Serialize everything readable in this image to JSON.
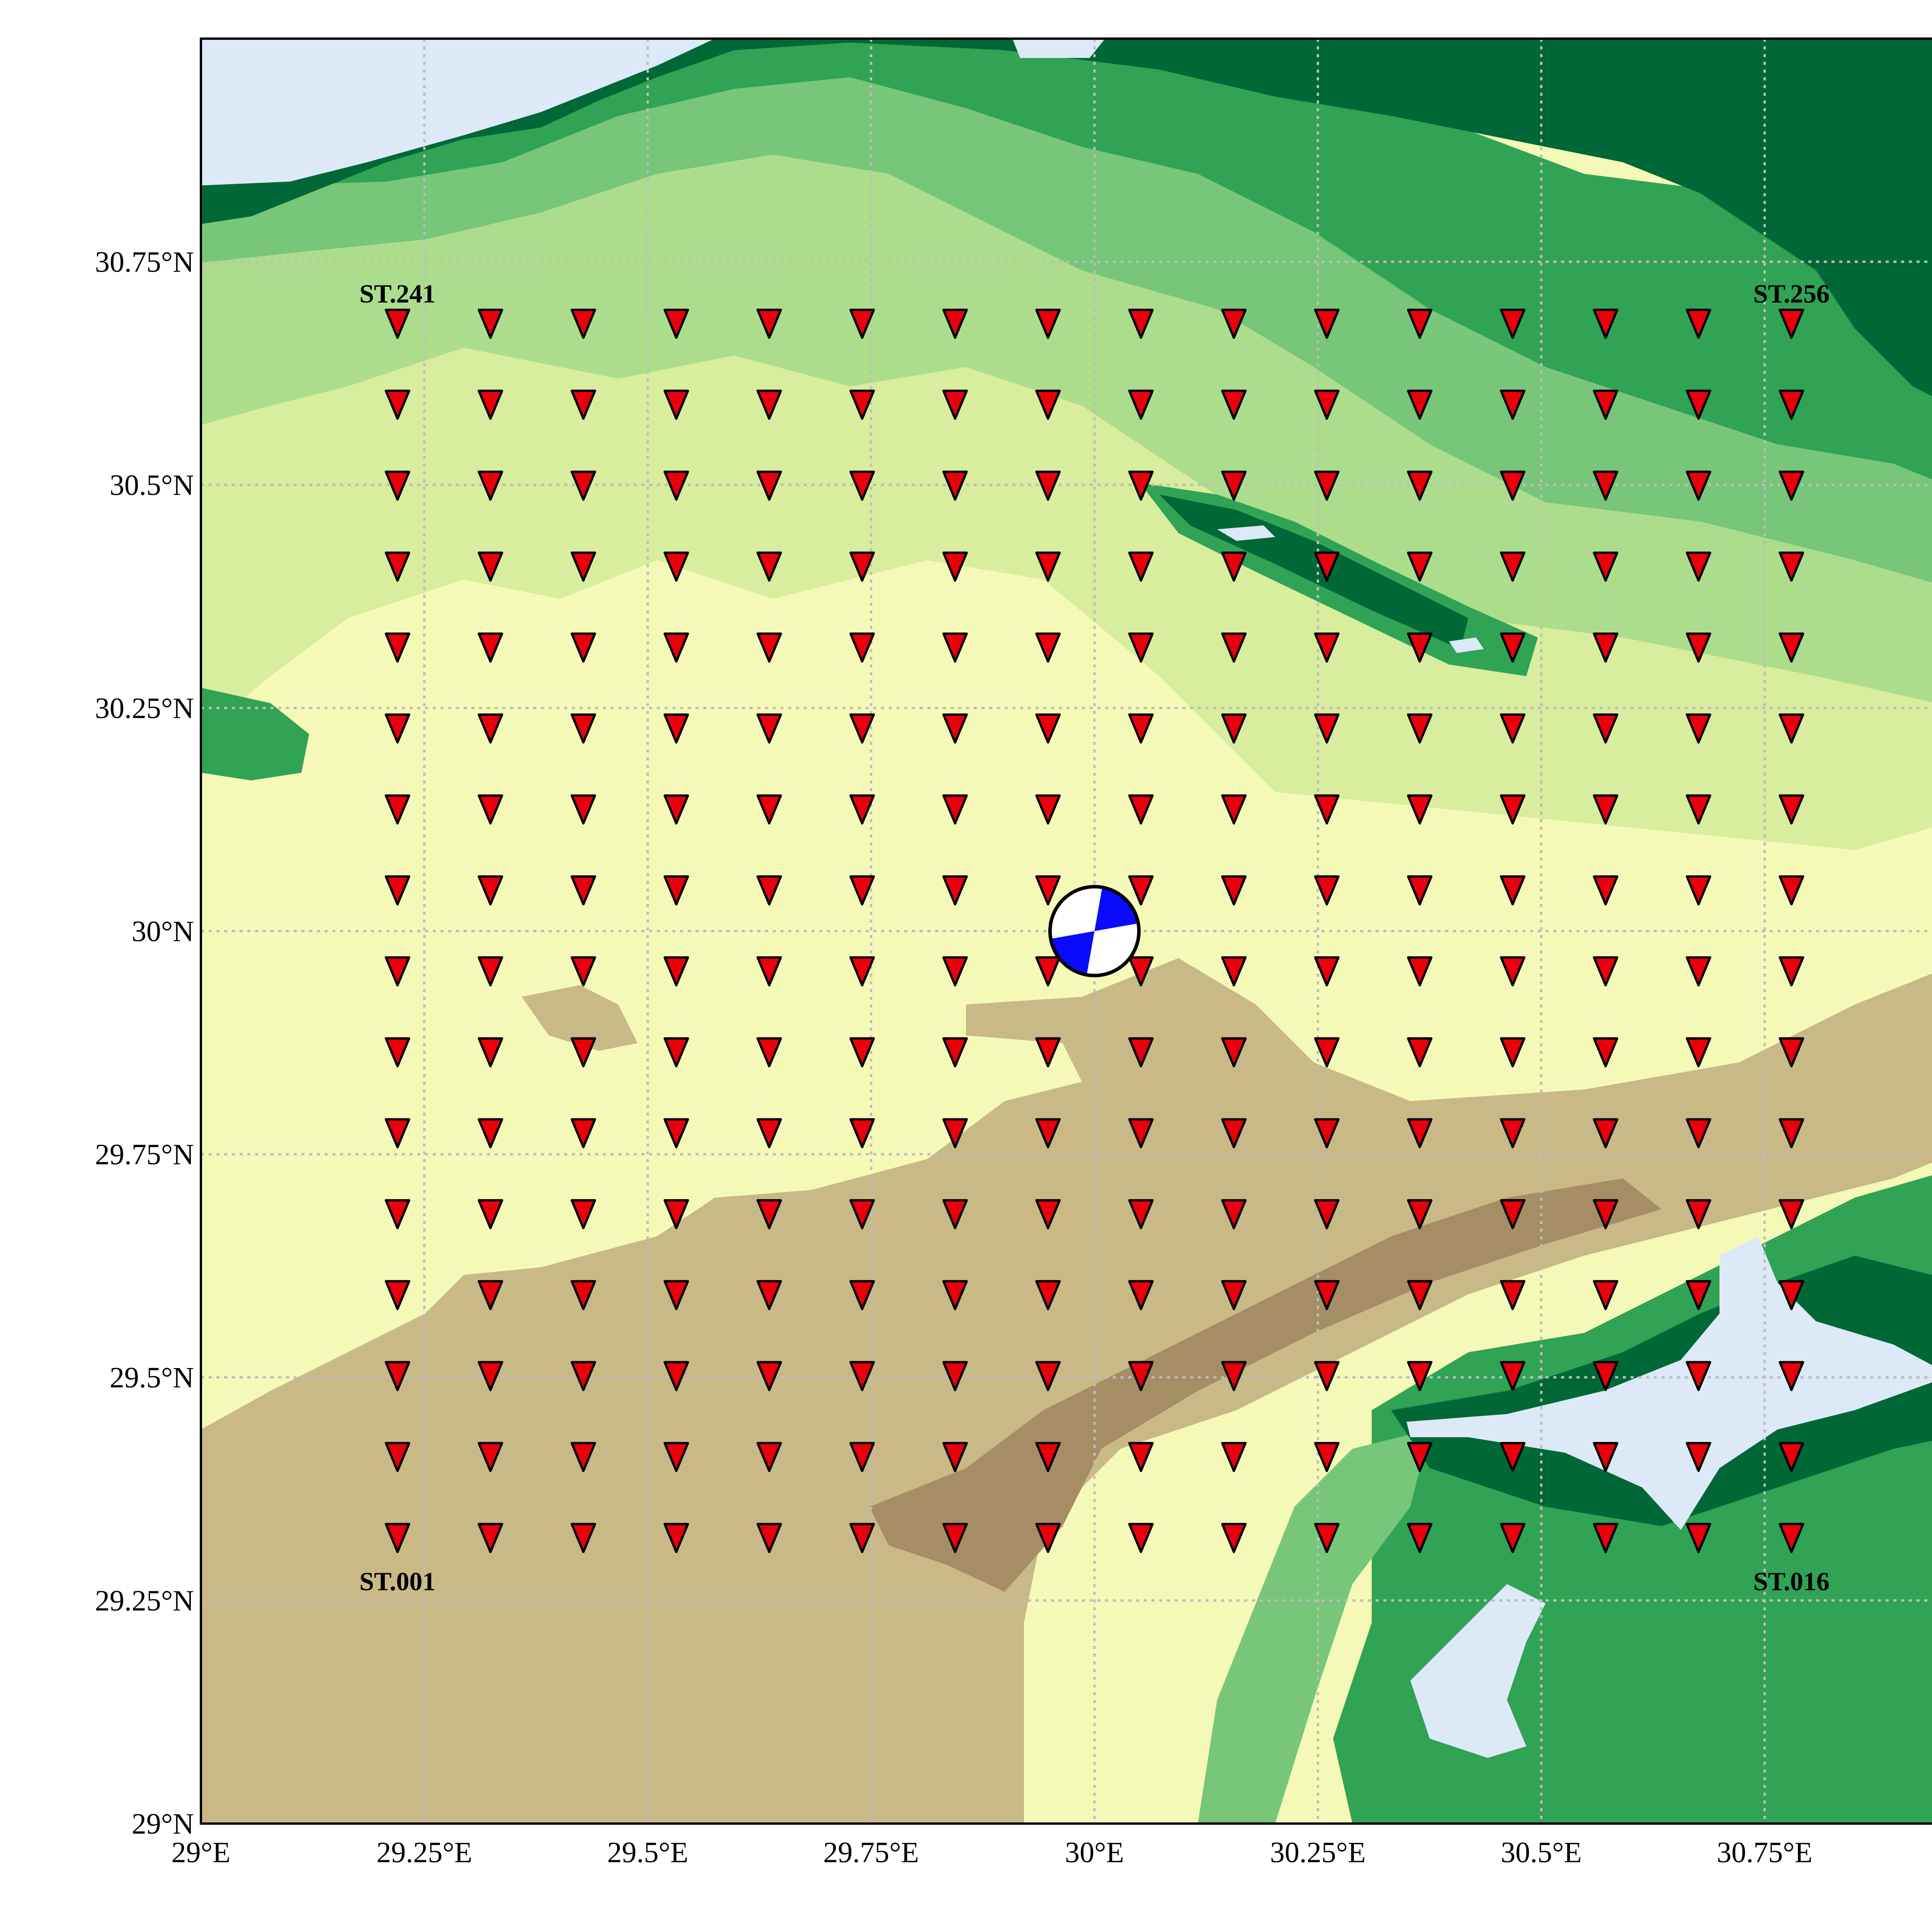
{
  "map": {
    "lon_range": [
      29.0,
      31.0
    ],
    "lat_range": [
      29.0,
      31.0
    ],
    "x_ticks": [
      {
        "value": 29.0,
        "label": "29°E"
      },
      {
        "value": 29.25,
        "label": "29.25°E"
      },
      {
        "value": 29.5,
        "label": "29.5°E"
      },
      {
        "value": 29.75,
        "label": "29.75°E"
      },
      {
        "value": 30.0,
        "label": "30°E"
      },
      {
        "value": 30.25,
        "label": "30.25°E"
      },
      {
        "value": 30.5,
        "label": "30.5°E"
      },
      {
        "value": 30.75,
        "label": "30.75°E"
      }
    ],
    "y_ticks": [
      {
        "value": 29.0,
        "label": "29°N"
      },
      {
        "value": 29.25,
        "label": "29.25°N"
      },
      {
        "value": 29.5,
        "label": "29.5°N"
      },
      {
        "value": 29.75,
        "label": "29.75°N"
      },
      {
        "value": 30.0,
        "label": "30°N"
      },
      {
        "value": 30.25,
        "label": "30.25°N"
      },
      {
        "value": 30.5,
        "label": "30.5°N"
      },
      {
        "value": 30.75,
        "label": "30.75°N"
      }
    ],
    "gridlines": true,
    "background": "colour-filled elevation contours (brown lowlands, yellow-green plains, dark-green highlands, light-blue lowest areas)",
    "colors": {
      "water": "#dde9f6",
      "brown_dark": "#a58d65",
      "brown": "#c8b987",
      "yellow": "#f5f9b7",
      "light_green": "#d8ed9d",
      "mid_green": "#acdd8c",
      "green": "#78c679",
      "dark_green": "#31a354",
      "darkest_green": "#006837",
      "station_fill": "#e8000b",
      "beachball_compression": "#0a0aff",
      "beachball_dilatation": "#ffffff"
    }
  },
  "stations": {
    "lon_start": 29.22,
    "lon_step": 0.104,
    "lat_start": 29.32,
    "lat_step": 0.0907,
    "columns": 16,
    "rows": 16,
    "marker": "inverted red triangle",
    "labels": [
      {
        "name": "ST.001",
        "anchor": "bottom-left"
      },
      {
        "name": "ST.016",
        "anchor": "bottom-right"
      },
      {
        "name": "ST.241",
        "anchor": "top-left"
      },
      {
        "name": "ST.256",
        "anchor": "top-right"
      }
    ]
  },
  "event": {
    "lon": 30.0,
    "lat": 30.0,
    "symbol": "focal-mechanism beach ball"
  }
}
